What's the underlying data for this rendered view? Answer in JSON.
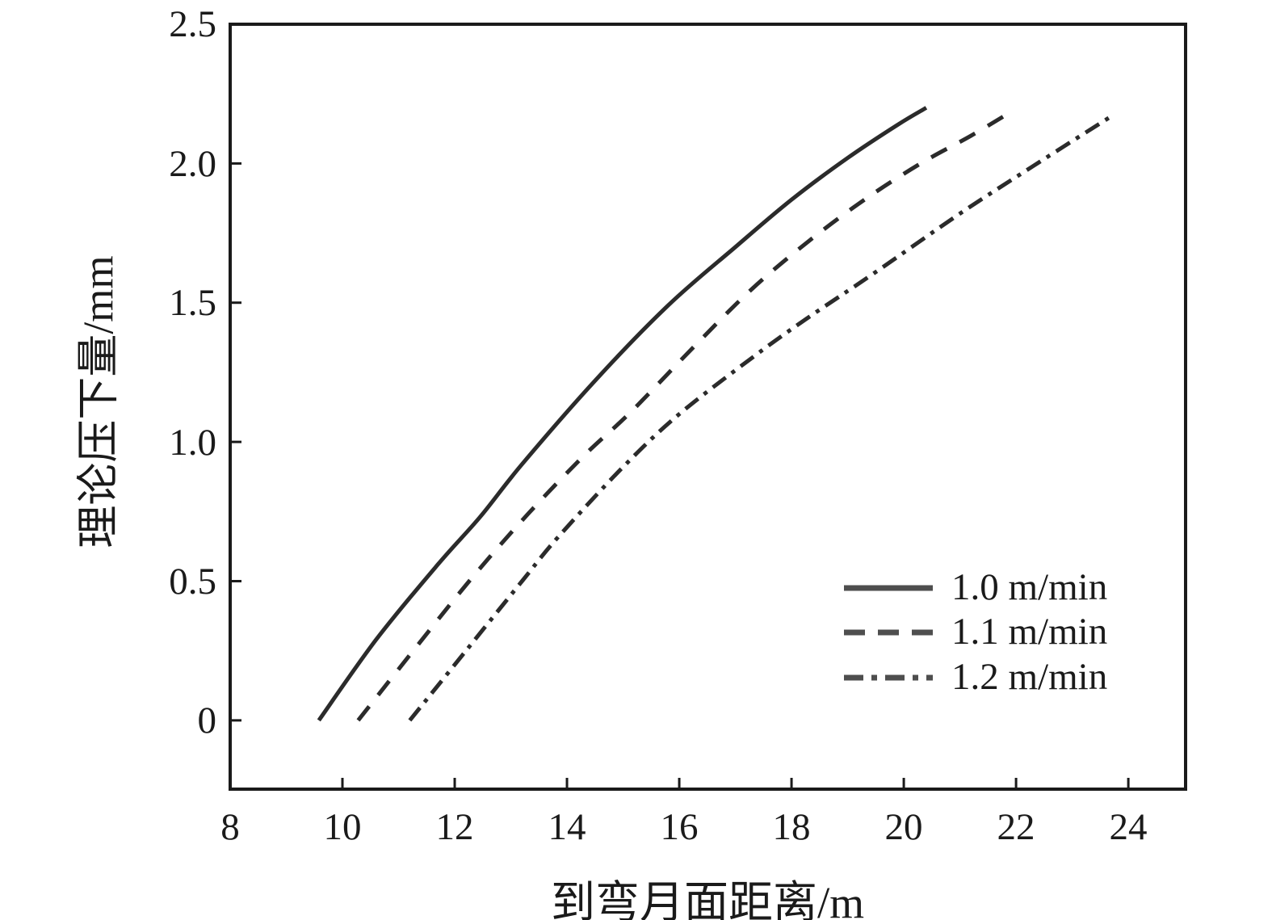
{
  "colors": {
    "background": "#ffffff",
    "axis": "#1a1a1a",
    "text": "#1a1a1a",
    "line": "#2b2b2b",
    "legend_swatch": "#4e4e4e"
  },
  "chart_data": {
    "type": "line",
    "title": "",
    "xlabel": "到弯月面距离/m",
    "ylabel": "理论压下量/mm",
    "xlim": [
      8,
      25.02
    ],
    "ylim": [
      -0.247,
      2.5
    ],
    "x_ticks": [
      8,
      10,
      12,
      14,
      16,
      18,
      20,
      22,
      24
    ],
    "x_tick_labels": [
      "8",
      "10",
      "12",
      "14",
      "16",
      "18",
      "20",
      "22",
      "24"
    ],
    "y_ticks": [
      0,
      0.5,
      1.0,
      1.5,
      2.0,
      2.5
    ],
    "y_tick_labels": [
      "0",
      "0.5",
      "1.0",
      "1.5",
      "2.0",
      "2.5"
    ],
    "grid": false,
    "legend_position": "lower-right-inside",
    "series": [
      {
        "name": "1.0 m/min",
        "style": "solid",
        "points": [
          [
            9.58,
            0
          ],
          [
            10.6,
            0.29
          ],
          [
            11.7,
            0.56
          ],
          [
            12.45,
            0.73
          ],
          [
            13.2,
            0.92
          ],
          [
            14.5,
            1.22
          ],
          [
            15.8,
            1.49
          ],
          [
            17.0,
            1.7
          ],
          [
            18.0,
            1.87
          ],
          [
            19.0,
            2.02
          ],
          [
            19.9,
            2.14
          ],
          [
            20.4,
            2.2
          ]
        ]
      },
      {
        "name": "1.1 m/min",
        "style": "dashed",
        "points": [
          [
            10.28,
            0
          ],
          [
            11.3,
            0.26
          ],
          [
            12.3,
            0.51
          ],
          [
            13.3,
            0.74
          ],
          [
            14.3,
            0.95
          ],
          [
            15.15,
            1.11
          ],
          [
            16.3,
            1.35
          ],
          [
            17.3,
            1.55
          ],
          [
            18.3,
            1.72
          ],
          [
            19.3,
            1.87
          ],
          [
            20.3,
            2.0
          ],
          [
            21.2,
            2.1
          ],
          [
            21.95,
            2.19
          ]
        ]
      },
      {
        "name": "1.2 m/min",
        "style": "dashdot",
        "points": [
          [
            11.2,
            0
          ],
          [
            12.2,
            0.25
          ],
          [
            13.2,
            0.5
          ],
          [
            13.85,
            0.66
          ],
          [
            15.0,
            0.91
          ],
          [
            16.0,
            1.1
          ],
          [
            17.35,
            1.31
          ],
          [
            18.25,
            1.44
          ],
          [
            19.5,
            1.61
          ],
          [
            21.0,
            1.82
          ],
          [
            22.3,
            1.99
          ],
          [
            23.7,
            2.17
          ]
        ]
      }
    ]
  }
}
